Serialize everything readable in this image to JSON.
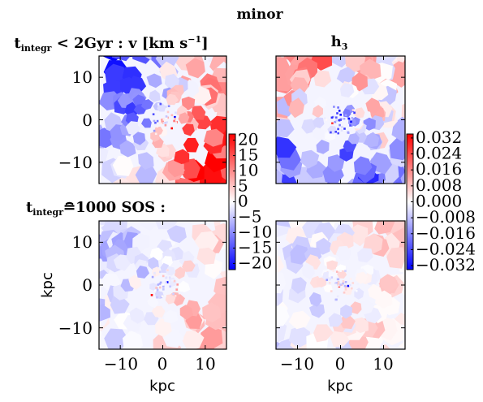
{
  "chart_data": {
    "type": "heatmap",
    "suptitle": "minor",
    "panels": [
      {
        "id": "v-top",
        "title_main": "t",
        "title_sub": "integr",
        "title_rest": " < 2Gyr : v [km s",
        "title_sup": "−1",
        "title_end": "]",
        "field": "v",
        "bias": 1.6,
        "pattern": "v_top"
      },
      {
        "id": "h3-top",
        "title_main": "h",
        "title_sub": "3",
        "field": "h3",
        "bias": 0.0,
        "pattern": "h3_top"
      },
      {
        "id": "v-bottom",
        "row_label_main": "t",
        "row_label_sub": "integr",
        "row_label_rest": "≘1000 SOS :",
        "field": "v",
        "bias": 0.4,
        "pattern": "v_bottom"
      },
      {
        "id": "h3-bottom",
        "field": "h3",
        "bias": 0.1,
        "pattern": "h3_bottom"
      }
    ],
    "axes": {
      "xlabel": "kpc",
      "ylabel": "kpc",
      "xlim": [
        -15,
        15
      ],
      "ylim": [
        -15,
        15
      ],
      "xticks": [
        -10,
        0,
        10
      ],
      "yticks": [
        -10,
        0,
        10
      ],
      "xtick_labels": [
        "−10",
        "0",
        "10"
      ],
      "ytick_labels": [
        "10",
        "0",
        "−10"
      ]
    },
    "colorbars": [
      {
        "id": "cbar-v",
        "cmap": "bwr",
        "range": [
          -22,
          22
        ],
        "ticks": [
          20,
          15,
          10,
          5,
          0,
          -5,
          -10,
          -15,
          -20
        ],
        "tick_labels": [
          "20",
          "15",
          "10",
          "5",
          "0",
          "−5",
          "−10",
          "−15",
          "−20"
        ]
      },
      {
        "id": "cbar-h3",
        "cmap": "bwr",
        "range": [
          -0.034,
          0.034
        ],
        "ticks": [
          0.032,
          0.024,
          0.016,
          0.008,
          0.0,
          -0.008,
          -0.016,
          -0.024,
          -0.032
        ],
        "tick_labels": [
          "0.032",
          "0.024",
          "0.016",
          "0.008",
          "0.000",
          "−0.008",
          "−0.016",
          "−0.024",
          "−0.032"
        ]
      }
    ]
  }
}
